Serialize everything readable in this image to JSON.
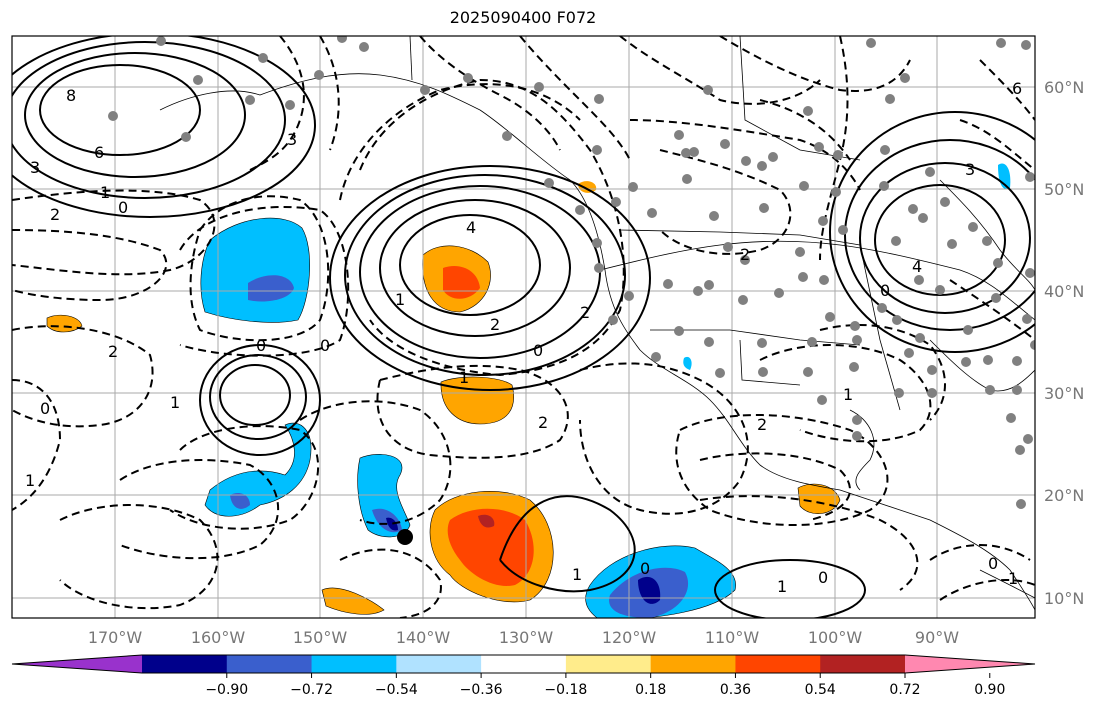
{
  "map": {
    "title": "2025090400 F072",
    "lon_ticks": [
      "170°W",
      "160°W",
      "150°W",
      "140°W",
      "130°W",
      "120°W",
      "110°W",
      "100°W",
      "90°W"
    ],
    "lat_ticks": [
      "60°N",
      "50°N",
      "40°N",
      "30°N",
      "20°N",
      "10°N"
    ],
    "colorbar": {
      "ticks": [
        "−0.90",
        "−0.72",
        "−0.54",
        "−0.36",
        "−0.18",
        "0.18",
        "0.36",
        "0.54",
        "0.72",
        "0.90"
      ],
      "colors": [
        "#9932cc",
        "#00008b",
        "#3a5fcd",
        "#00bfff",
        "#b0e2ff",
        "#ffffff",
        "#ffec8b",
        "#ffa500",
        "#ff4500",
        "#b22222",
        "#ff88b0"
      ]
    },
    "contour_labels": [
      "8",
      "6",
      "3",
      "1",
      "0",
      "2",
      "3",
      "4",
      "2",
      "1",
      "0",
      "2",
      "0",
      "1",
      "2",
      "2",
      "1",
      "0",
      "1",
      "0",
      "0",
      "1",
      "3",
      "6",
      "4",
      "0",
      "2",
      "1",
      "2",
      "1",
      "0",
      "0",
      "1"
    ],
    "marker": "black-dot"
  }
}
